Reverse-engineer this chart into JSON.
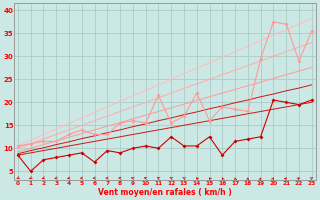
{
  "x": [
    0,
    1,
    2,
    3,
    4,
    5,
    6,
    7,
    8,
    9,
    10,
    11,
    12,
    13,
    14,
    15,
    16,
    17,
    18,
    19,
    20,
    21,
    22,
    23
  ],
  "line1": [
    8.5,
    5.0,
    7.5,
    8.0,
    8.5,
    9.0,
    7.0,
    9.5,
    9.0,
    10.0,
    10.5,
    10.0,
    12.5,
    10.5,
    10.5,
    12.5,
    8.5,
    11.5,
    12.0,
    12.5,
    20.5,
    20.0,
    19.5,
    20.5
  ],
  "line2": [
    10.5,
    11.0,
    11.5,
    11.5,
    13.0,
    14.0,
    13.0,
    13.0,
    15.5,
    16.0,
    15.5,
    21.5,
    15.5,
    17.0,
    22.0,
    16.0,
    19.0,
    18.5,
    18.0,
    29.5,
    37.5,
    37.0,
    29.0,
    35.5
  ],
  "lin1": [
    8.5,
    9.0,
    9.5,
    10.0,
    10.5,
    11.0,
    11.5,
    12.0,
    12.5,
    13.0,
    13.5,
    14.0,
    14.5,
    15.0,
    15.5,
    16.0,
    16.5,
    17.0,
    17.5,
    18.0,
    18.5,
    19.0,
    19.5,
    20.0
  ],
  "lin2": [
    8.8,
    9.5,
    10.1,
    10.8,
    11.4,
    12.1,
    12.7,
    13.4,
    14.0,
    14.7,
    15.3,
    16.0,
    16.6,
    17.3,
    17.9,
    18.6,
    19.2,
    19.9,
    20.5,
    21.2,
    21.8,
    22.5,
    23.1,
    23.8
  ],
  "lin3": [
    9.2,
    10.0,
    10.8,
    11.6,
    12.4,
    13.2,
    14.0,
    14.8,
    15.6,
    16.4,
    17.2,
    18.0,
    18.8,
    19.6,
    20.4,
    21.2,
    22.0,
    22.8,
    23.6,
    24.4,
    25.2,
    26.0,
    26.8,
    27.6
  ],
  "lin4": [
    10.0,
    11.0,
    12.0,
    13.0,
    14.0,
    15.0,
    16.0,
    17.0,
    18.0,
    19.0,
    20.0,
    21.0,
    22.0,
    23.0,
    24.0,
    25.0,
    26.0,
    27.0,
    28.0,
    29.0,
    30.0,
    31.0,
    32.0,
    33.0
  ],
  "lin5": [
    10.5,
    11.8,
    13.0,
    14.2,
    15.4,
    16.6,
    17.8,
    19.0,
    20.2,
    21.4,
    22.6,
    23.8,
    25.0,
    26.2,
    27.4,
    28.6,
    29.8,
    31.0,
    32.2,
    33.4,
    34.6,
    35.8,
    37.0,
    38.2
  ],
  "background": "#cce8e4",
  "grid_color": "#aaccc8",
  "line1_color": "#cc0000",
  "line2_color": "#ff9999",
  "lin_dark_color": "#cc0000",
  "lin_light1_color": "#ff9999",
  "lin_light2_color": "#ffaaaa",
  "lin_light3_color": "#ffbbbb",
  "xlabel": "Vent moyen/en rafales ( km/h )",
  "yticks": [
    5,
    10,
    15,
    20,
    25,
    30,
    35,
    40
  ],
  "xlim": [
    -0.3,
    23.3
  ],
  "ylim": [
    3.0,
    41.5
  ]
}
